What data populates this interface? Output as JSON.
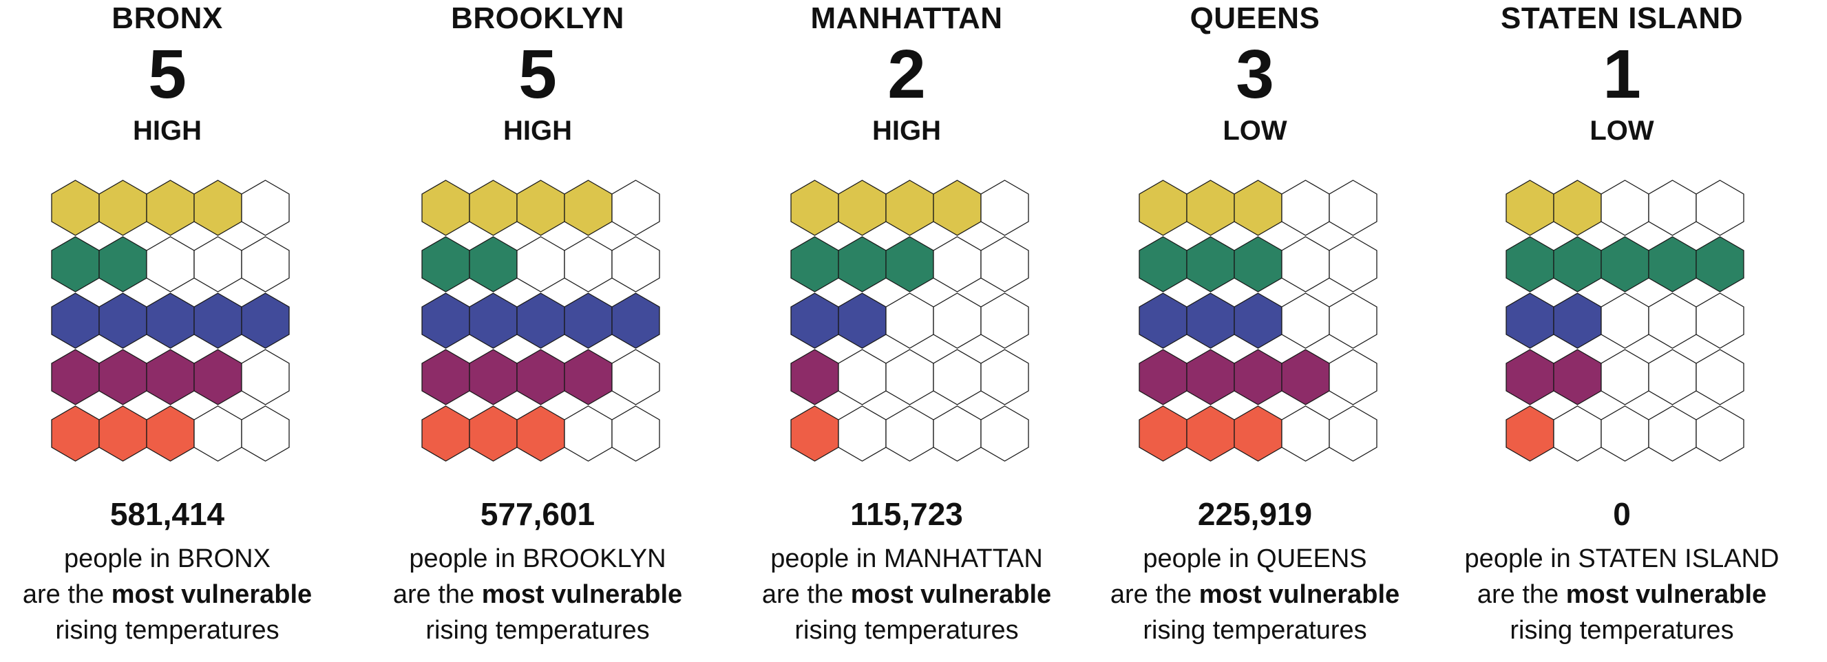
{
  "colors": [
    "#dcc54c",
    "#2b8263",
    "#414b9a",
    "#8d2c68",
    "#ee5e46"
  ],
  "boroughs": [
    {
      "name": "BRONX",
      "score": "5",
      "level": "HIGH",
      "filled": [
        4,
        2,
        5,
        4,
        3
      ],
      "count": "581,414",
      "line1": "people in BRONX",
      "line2_pre": "are the ",
      "line2_bold": "most vulnerable",
      "line3": "rising temperatures"
    },
    {
      "name": "BROOKLYN",
      "score": "5",
      "level": "HIGH",
      "filled": [
        4,
        2,
        5,
        4,
        3
      ],
      "count": "577,601",
      "line1": "people in BROOKLYN",
      "line2_pre": "are the ",
      "line2_bold": "most vulnerable",
      "line3": "rising temperatures"
    },
    {
      "name": "MANHATTAN",
      "score": "2",
      "level": "HIGH",
      "filled": [
        4,
        3,
        2,
        1,
        1
      ],
      "count": "115,723",
      "line1": "people in MANHATTAN",
      "line2_pre": "are the ",
      "line2_bold": "most vulnerable",
      "line3": "rising temperatures"
    },
    {
      "name": "QUEENS",
      "score": "3",
      "level": "LOW",
      "filled": [
        3,
        3,
        3,
        4,
        3
      ],
      "count": "225,919",
      "line1": "people in QUEENS",
      "line2_pre": "are the ",
      "line2_bold": "most vulnerable",
      "line3": "rising temperatures"
    },
    {
      "name": "STATEN ISLAND",
      "score": "1",
      "level": "LOW",
      "filled": [
        2,
        5,
        2,
        2,
        1
      ],
      "count": "0",
      "line1": "people in STATEN ISLAND",
      "line2_pre": "are the ",
      "line2_bold": "most vulnerable",
      "line3": "rising temperatures"
    }
  ]
}
